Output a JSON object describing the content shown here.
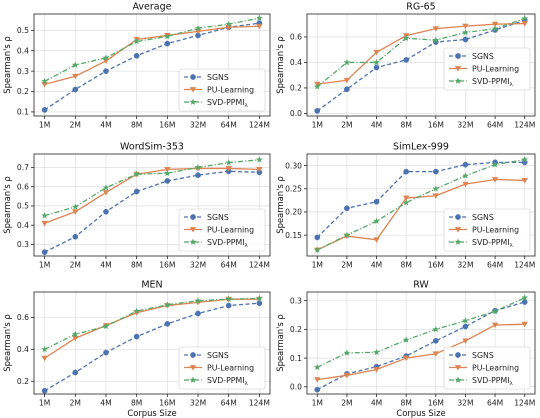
{
  "figure": {
    "xlabel": "Corpus Size",
    "ylabel": "Spearman's ρ"
  },
  "colors": {
    "SGNS": "#4c72b0",
    "PU-Learning": "#dd8452",
    "SVD-PPMI": "#55a868"
  },
  "legend": [
    {
      "key": "SGNS",
      "label": "SGNS",
      "marker": "circle",
      "dash": "dashed"
    },
    {
      "key": "PU-Learning",
      "label": "PU-Learning",
      "marker": "triangle-down",
      "dash": "solid"
    },
    {
      "key": "SVD-PPMI",
      "label": "SVD-PPMI",
      "label_sub": "λ",
      "marker": "star",
      "dash": "dashdot"
    }
  ],
  "chart_data": [
    {
      "type": "line",
      "title": "Average",
      "categories": [
        "1M",
        "2M",
        "4M",
        "8M",
        "16M",
        "32M",
        "64M",
        "124M"
      ],
      "ylim": [
        0.08,
        0.58
      ],
      "yticks": [
        0.1,
        0.2,
        0.3,
        0.4,
        0.5
      ],
      "legend_position": "bottom-right",
      "series": [
        {
          "name": "SGNS",
          "values": [
            0.11,
            0.21,
            0.3,
            0.375,
            0.435,
            0.475,
            0.515,
            0.535
          ]
        },
        {
          "name": "PU-Learning",
          "values": [
            0.235,
            0.275,
            0.35,
            0.455,
            0.475,
            0.495,
            0.515,
            0.52
          ]
        },
        {
          "name": "SVD-PPMI",
          "values": [
            0.25,
            0.33,
            0.365,
            0.445,
            0.47,
            0.51,
            0.53,
            0.56
          ]
        }
      ]
    },
    {
      "type": "line",
      "title": "RG-65",
      "categories": [
        "1M",
        "2M",
        "4M",
        "8M",
        "16M",
        "32M",
        "64M",
        "124M"
      ],
      "ylim": [
        -0.02,
        0.78
      ],
      "yticks": [
        0.0,
        0.2,
        0.4,
        0.6
      ],
      "legend_position": "center-right",
      "series": [
        {
          "name": "SGNS",
          "values": [
            0.02,
            0.19,
            0.36,
            0.42,
            0.56,
            0.58,
            0.655,
            0.73
          ]
        },
        {
          "name": "PU-Learning",
          "values": [
            0.23,
            0.26,
            0.48,
            0.61,
            0.665,
            0.685,
            0.7,
            0.705
          ]
        },
        {
          "name": "SVD-PPMI",
          "values": [
            0.21,
            0.4,
            0.4,
            0.59,
            0.575,
            0.635,
            0.665,
            0.745
          ]
        }
      ]
    },
    {
      "type": "line",
      "title": "WordSim-353",
      "categories": [
        "1M",
        "2M",
        "4M",
        "8M",
        "16M",
        "32M",
        "64M",
        "124M"
      ],
      "ylim": [
        0.24,
        0.77
      ],
      "yticks": [
        0.3,
        0.4,
        0.5,
        0.6,
        0.7
      ],
      "legend_position": "bottom-right",
      "series": [
        {
          "name": "SGNS",
          "values": [
            0.26,
            0.34,
            0.47,
            0.575,
            0.63,
            0.66,
            0.68,
            0.675
          ]
        },
        {
          "name": "PU-Learning",
          "values": [
            0.41,
            0.47,
            0.57,
            0.665,
            0.69,
            0.695,
            0.695,
            0.69
          ]
        },
        {
          "name": "SVD-PPMI",
          "values": [
            0.45,
            0.495,
            0.595,
            0.665,
            0.67,
            0.7,
            0.725,
            0.74
          ]
        }
      ]
    },
    {
      "type": "line",
      "title": "SimLex-999",
      "categories": [
        "1M",
        "2M",
        "4M",
        "8M",
        "16M",
        "32M",
        "64M",
        "124M"
      ],
      "ylim": [
        0.105,
        0.325
      ],
      "yticks": [
        0.15,
        0.2,
        0.25,
        0.3
      ],
      "legend_position": "bottom-right",
      "series": [
        {
          "name": "SGNS",
          "values": [
            0.145,
            0.208,
            0.222,
            0.287,
            0.287,
            0.302,
            0.307,
            0.307
          ]
        },
        {
          "name": "PU-Learning",
          "values": [
            0.118,
            0.148,
            0.14,
            0.23,
            0.235,
            0.26,
            0.27,
            0.268
          ]
        },
        {
          "name": "SVD-PPMI",
          "values": [
            0.118,
            0.15,
            0.18,
            0.22,
            0.25,
            0.278,
            0.302,
            0.313
          ]
        }
      ]
    },
    {
      "type": "line",
      "title": "MEN",
      "categories": [
        "1M",
        "2M",
        "4M",
        "8M",
        "16M",
        "32M",
        "64M",
        "124M"
      ],
      "ylim": [
        0.12,
        0.76
      ],
      "yticks": [
        0.2,
        0.4,
        0.6
      ],
      "legend_position": "bottom-right",
      "series": [
        {
          "name": "SGNS",
          "values": [
            0.14,
            0.255,
            0.38,
            0.48,
            0.56,
            0.625,
            0.675,
            0.69
          ]
        },
        {
          "name": "PU-Learning",
          "values": [
            0.345,
            0.47,
            0.55,
            0.63,
            0.675,
            0.695,
            0.715,
            0.715
          ]
        },
        {
          "name": "SVD-PPMI",
          "values": [
            0.4,
            0.495,
            0.545,
            0.64,
            0.68,
            0.705,
            0.715,
            0.72
          ]
        }
      ]
    },
    {
      "type": "line",
      "title": "RW",
      "categories": [
        "1M",
        "2M",
        "4M",
        "8M",
        "16M",
        "32M",
        "64M",
        "124M"
      ],
      "ylim": [
        -0.025,
        0.33
      ],
      "yticks": [
        0.0,
        0.1,
        0.2,
        0.3
      ],
      "legend_position": "bottom-right",
      "series": [
        {
          "name": "SGNS",
          "values": [
            -0.01,
            0.045,
            0.07,
            0.107,
            0.16,
            0.21,
            0.265,
            0.295
          ]
        },
        {
          "name": "PU-Learning",
          "values": [
            0.025,
            0.04,
            0.06,
            0.1,
            0.115,
            0.16,
            0.215,
            0.218
          ]
        },
        {
          "name": "SVD-PPMI",
          "values": [
            0.068,
            0.118,
            0.12,
            0.163,
            0.2,
            0.23,
            0.263,
            0.31
          ]
        }
      ]
    }
  ]
}
